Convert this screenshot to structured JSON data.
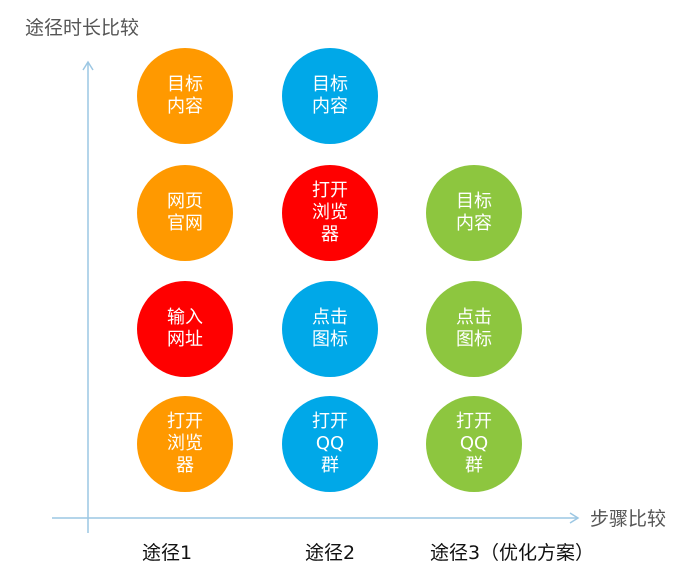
{
  "diagram": {
    "y_axis_title": "途径时长比较",
    "x_axis_title": "步骤比较",
    "axis_color": "#9cc7e3",
    "columns": [
      {
        "label": "途径1",
        "nodes": [
          {
            "text": "目标\n内容",
            "color": "#ff9900"
          },
          {
            "text": "网页\n官网",
            "color": "#ff9900"
          },
          {
            "text": "输入\n网址",
            "color": "#ff0000"
          },
          {
            "text": "打开\n浏览\n器",
            "color": "#ff9900"
          }
        ]
      },
      {
        "label": "途径2",
        "nodes": [
          {
            "text": "目标\n内容",
            "color": "#00a8e8"
          },
          {
            "text": "打开\n浏览\n器",
            "color": "#ff0000"
          },
          {
            "text": "点击\n图标",
            "color": "#00a8e8"
          },
          {
            "text": "打开\nQQ\n群",
            "color": "#00a8e8"
          }
        ]
      },
      {
        "label": "途径3（优化方案）",
        "nodes": [
          {
            "text": "目标\n内容",
            "color": "#8dc63f"
          },
          {
            "text": "点击\n图标",
            "color": "#8dc63f"
          },
          {
            "text": "打开\nQQ\n群",
            "color": "#8dc63f"
          }
        ]
      }
    ]
  }
}
